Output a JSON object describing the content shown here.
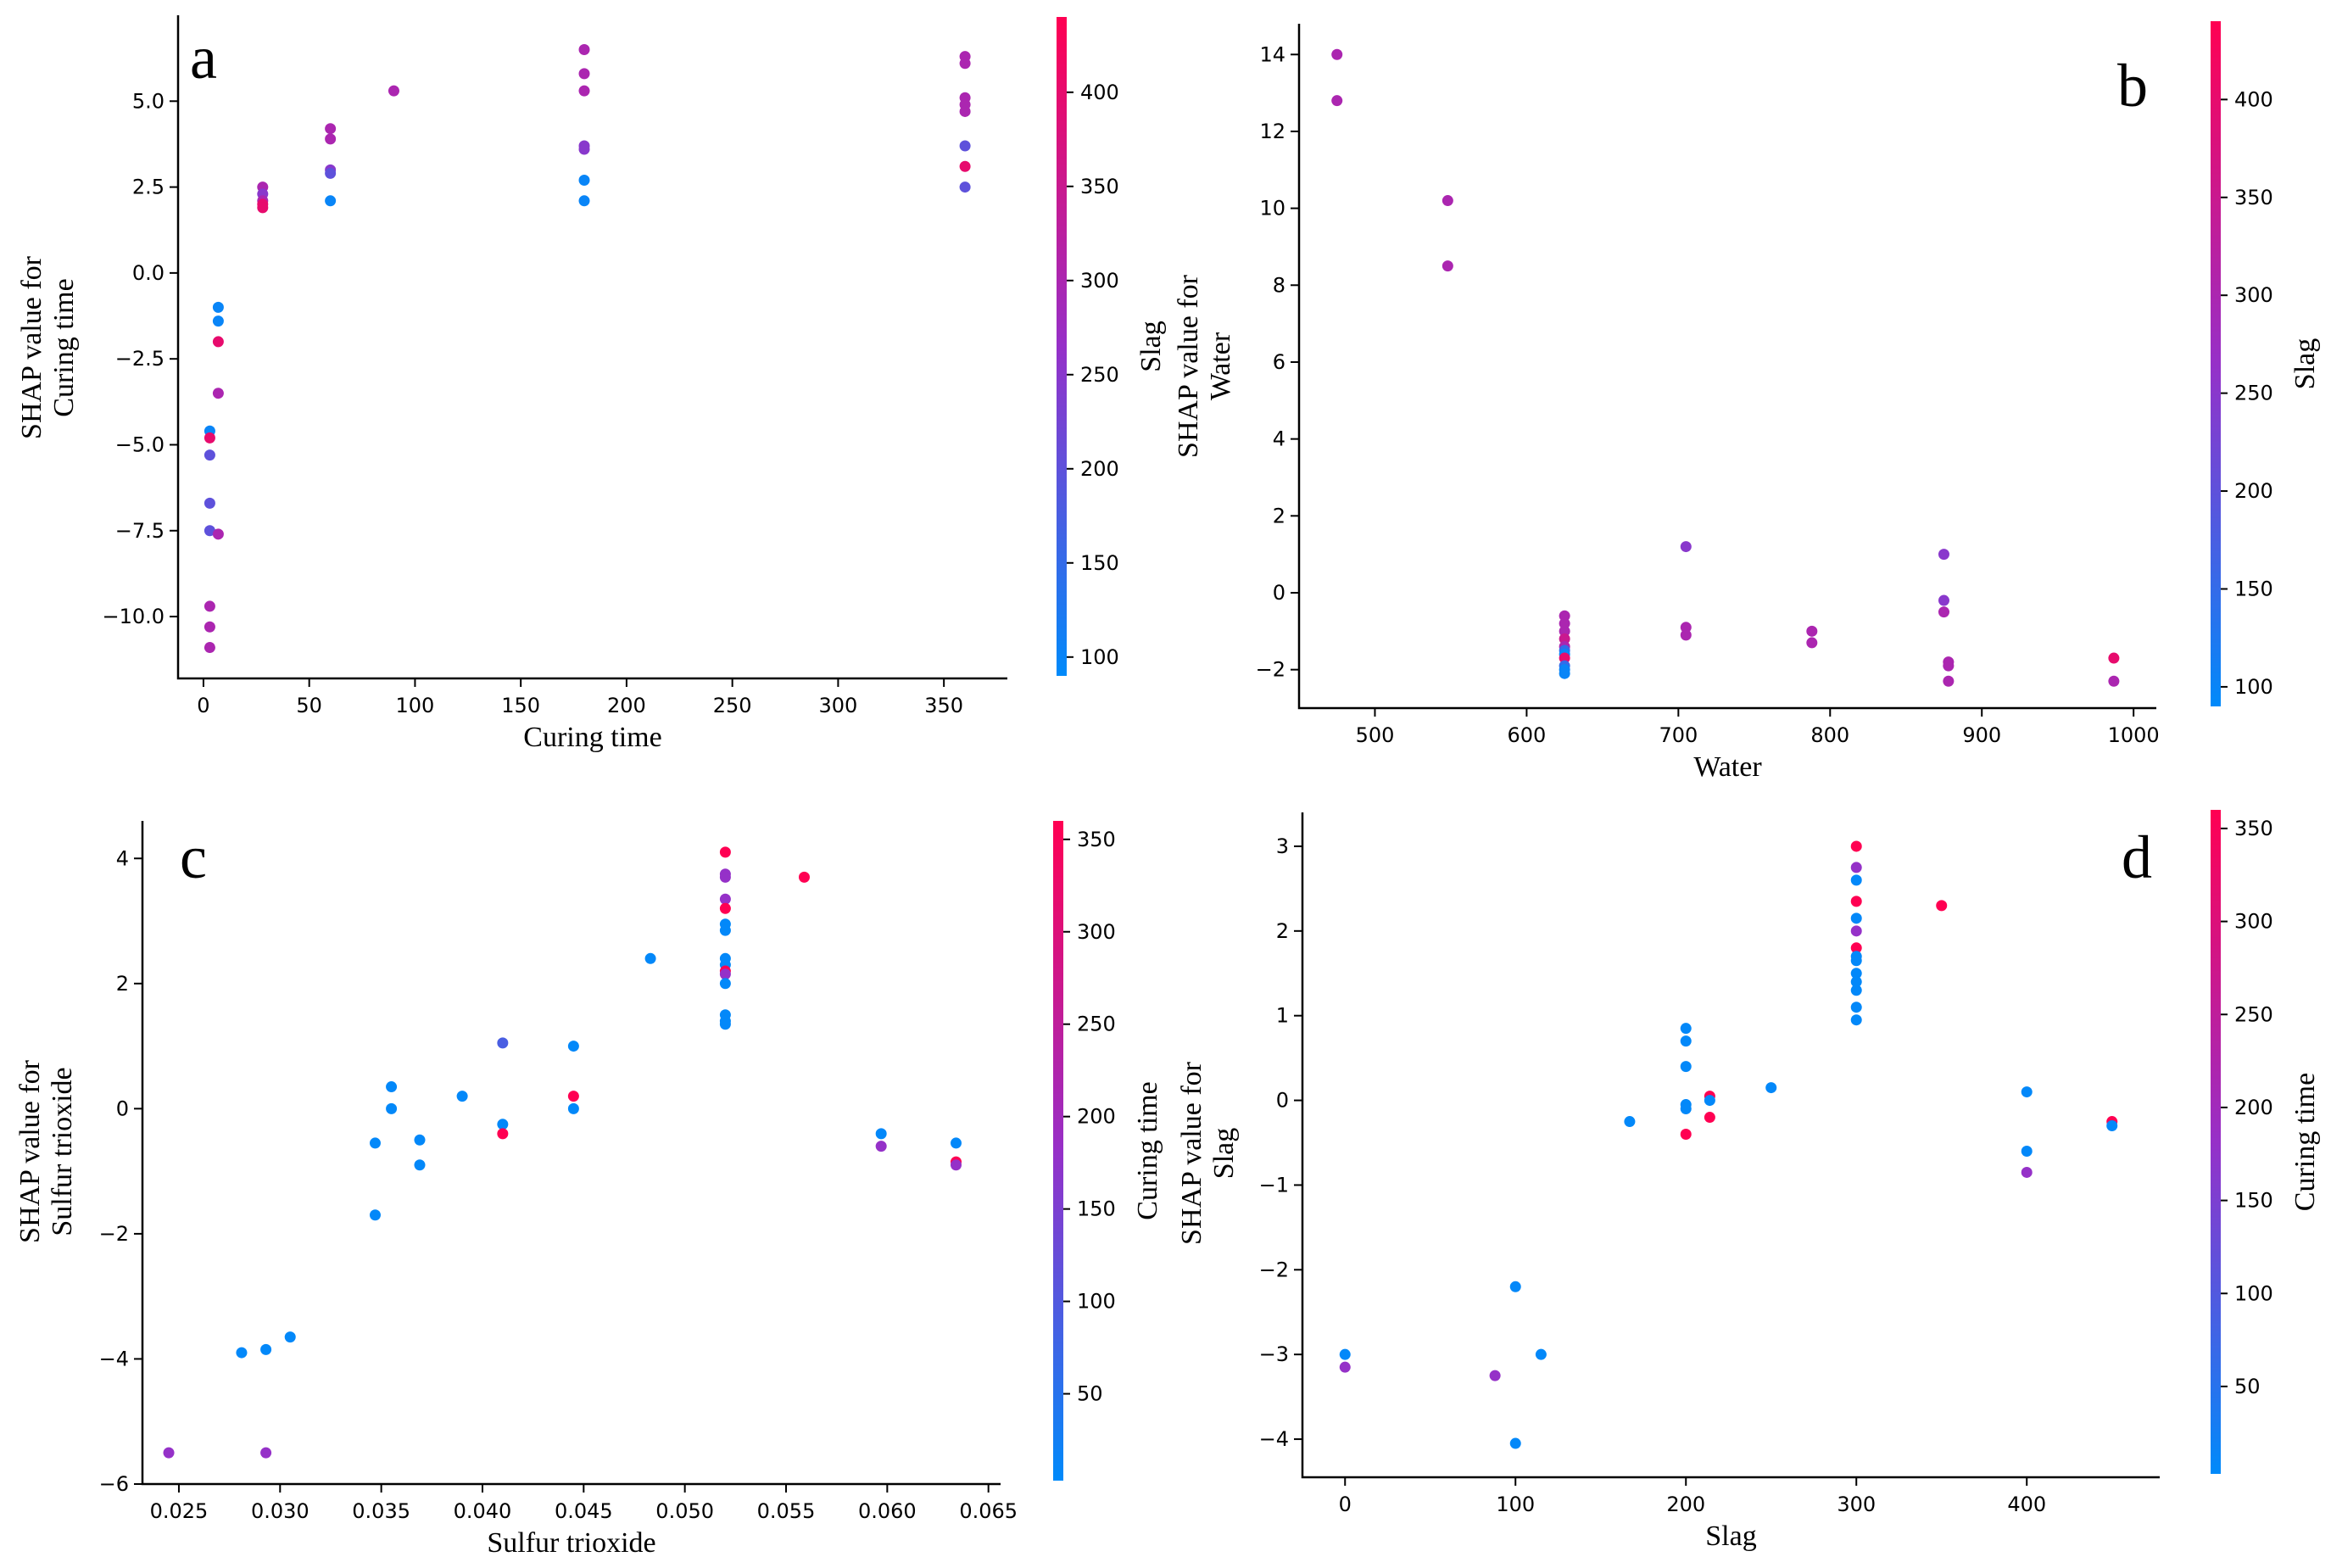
{
  "chart_data": [
    {
      "type": "scatter",
      "panel_label": "a",
      "xlabel": "Curing time",
      "ylabel": [
        "SHAP value for",
        "Curing time"
      ],
      "xlim": [
        -12,
        380
      ],
      "ylim": [
        -11.8,
        7.5
      ],
      "xticks": [
        0,
        50,
        100,
        150,
        200,
        250,
        300,
        350
      ],
      "xtick_labels": [
        "0",
        "50",
        "100",
        "150",
        "200",
        "250",
        "300",
        "350"
      ],
      "yticks": [
        -10.0,
        -7.5,
        -5.0,
        -2.5,
        0.0,
        2.5,
        5.0
      ],
      "ytick_labels": [
        "−10.0",
        "−7.5",
        "−5.0",
        "−2.5",
        "0.0",
        "2.5",
        "5.0"
      ],
      "colorbar": {
        "label": "Slag",
        "range": [
          90,
          440
        ],
        "ticks": [
          100,
          150,
          200,
          250,
          300,
          350,
          400
        ],
        "tick_labels": [
          "100",
          "150",
          "200",
          "250",
          "300",
          "350",
          "400"
        ]
      },
      "points": [
        {
          "x": 7,
          "y": -1.0,
          "c": 100
        },
        {
          "x": 7,
          "y": -1.4,
          "c": 100
        },
        {
          "x": 7,
          "y": -2.0,
          "c": 400
        },
        {
          "x": 7,
          "y": -3.5,
          "c": 300
        },
        {
          "x": 3,
          "y": -4.6,
          "c": 100
        },
        {
          "x": 3,
          "y": -4.8,
          "c": 400
        },
        {
          "x": 3,
          "y": -5.3,
          "c": 200
        },
        {
          "x": 3,
          "y": -6.7,
          "c": 200
        },
        {
          "x": 3,
          "y": -7.5,
          "c": 200
        },
        {
          "x": 7,
          "y": -7.6,
          "c": 300
        },
        {
          "x": 3,
          "y": -9.7,
          "c": 300
        },
        {
          "x": 3,
          "y": -10.3,
          "c": 300
        },
        {
          "x": 3,
          "y": -10.9,
          "c": 300
        },
        {
          "x": 28,
          "y": 2.5,
          "c": 300
        },
        {
          "x": 28,
          "y": 2.3,
          "c": 250
        },
        {
          "x": 28,
          "y": 2.1,
          "c": 300
        },
        {
          "x": 28,
          "y": 2.0,
          "c": 400
        },
        {
          "x": 28,
          "y": 1.9,
          "c": 400
        },
        {
          "x": 60,
          "y": 4.2,
          "c": 300
        },
        {
          "x": 60,
          "y": 3.9,
          "c": 300
        },
        {
          "x": 60,
          "y": 3.0,
          "c": 250
        },
        {
          "x": 60,
          "y": 2.9,
          "c": 200
        },
        {
          "x": 60,
          "y": 2.1,
          "c": 100
        },
        {
          "x": 90,
          "y": 5.3,
          "c": 300
        },
        {
          "x": 180,
          "y": 6.5,
          "c": 300
        },
        {
          "x": 180,
          "y": 5.8,
          "c": 300
        },
        {
          "x": 180,
          "y": 5.3,
          "c": 300
        },
        {
          "x": 180,
          "y": 3.7,
          "c": 250
        },
        {
          "x": 180,
          "y": 3.6,
          "c": 250
        },
        {
          "x": 180,
          "y": 2.7,
          "c": 100
        },
        {
          "x": 180,
          "y": 2.1,
          "c": 100
        },
        {
          "x": 360,
          "y": 6.3,
          "c": 300
        },
        {
          "x": 360,
          "y": 6.1,
          "c": 300
        },
        {
          "x": 360,
          "y": 5.1,
          "c": 300
        },
        {
          "x": 360,
          "y": 4.9,
          "c": 300
        },
        {
          "x": 360,
          "y": 4.7,
          "c": 300
        },
        {
          "x": 360,
          "y": 3.7,
          "c": 200
        },
        {
          "x": 360,
          "y": 3.1,
          "c": 400
        },
        {
          "x": 360,
          "y": 2.5,
          "c": 200
        }
      ]
    },
    {
      "type": "scatter",
      "panel_label": "b",
      "xlabel": "Water",
      "ylabel": [
        "SHAP value for",
        "Water"
      ],
      "xlim": [
        450,
        1015
      ],
      "ylim": [
        -3.0,
        14.8
      ],
      "xticks": [
        500,
        600,
        700,
        800,
        900,
        1000
      ],
      "xtick_labels": [
        "500",
        "600",
        "700",
        "800",
        "900",
        "1000"
      ],
      "yticks": [
        -2,
        0,
        2,
        4,
        6,
        8,
        10,
        12,
        14
      ],
      "ytick_labels": [
        "−2",
        "0",
        "2",
        "4",
        "6",
        "8",
        "10",
        "12",
        "14"
      ],
      "colorbar": {
        "label": "Slag",
        "range": [
          90,
          440
        ],
        "ticks": [
          100,
          150,
          200,
          250,
          300,
          350,
          400
        ],
        "tick_labels": [
          "100",
          "150",
          "200",
          "250",
          "300",
          "350",
          "400"
        ]
      },
      "points": [
        {
          "x": 475,
          "y": 14.0,
          "c": 300
        },
        {
          "x": 475,
          "y": 12.8,
          "c": 300
        },
        {
          "x": 548,
          "y": 10.2,
          "c": 300
        },
        {
          "x": 548,
          "y": 8.5,
          "c": 300
        },
        {
          "x": 625,
          "y": -0.6,
          "c": 300
        },
        {
          "x": 625,
          "y": -0.8,
          "c": 300
        },
        {
          "x": 625,
          "y": -1.0,
          "c": 300
        },
        {
          "x": 625,
          "y": -1.2,
          "c": 350
        },
        {
          "x": 625,
          "y": -1.4,
          "c": 300
        },
        {
          "x": 625,
          "y": -1.5,
          "c": 150
        },
        {
          "x": 625,
          "y": -1.6,
          "c": 100
        },
        {
          "x": 625,
          "y": -1.7,
          "c": 400
        },
        {
          "x": 625,
          "y": -1.9,
          "c": 150
        },
        {
          "x": 625,
          "y": -2.0,
          "c": 100
        },
        {
          "x": 625,
          "y": -2.1,
          "c": 100
        },
        {
          "x": 705,
          "y": 1.2,
          "c": 250
        },
        {
          "x": 705,
          "y": -0.9,
          "c": 300
        },
        {
          "x": 705,
          "y": -1.1,
          "c": 300
        },
        {
          "x": 788,
          "y": -1.0,
          "c": 300
        },
        {
          "x": 788,
          "y": -1.3,
          "c": 300
        },
        {
          "x": 875,
          "y": 1.0,
          "c": 250
        },
        {
          "x": 875,
          "y": -0.2,
          "c": 250
        },
        {
          "x": 875,
          "y": -0.5,
          "c": 300
        },
        {
          "x": 878,
          "y": -1.8,
          "c": 300
        },
        {
          "x": 878,
          "y": -1.9,
          "c": 300
        },
        {
          "x": 878,
          "y": -2.3,
          "c": 300
        },
        {
          "x": 987,
          "y": -1.7,
          "c": 400
        },
        {
          "x": 987,
          "y": -2.3,
          "c": 300
        }
      ]
    },
    {
      "type": "scatter",
      "panel_label": "c",
      "xlabel": "Sulfur trioxide",
      "ylabel": [
        "SHAP value for",
        "Sulfur trioxide"
      ],
      "xlim": [
        0.0232,
        0.0656
      ],
      "ylim": [
        -6.0,
        4.6
      ],
      "xticks": [
        0.025,
        0.03,
        0.035,
        0.04,
        0.045,
        0.05,
        0.055,
        0.06,
        0.065
      ],
      "xtick_labels": [
        "0.025",
        "0.030",
        "0.035",
        "0.040",
        "0.045",
        "0.050",
        "0.055",
        "0.060",
        "0.065"
      ],
      "yticks": [
        -6,
        -4,
        -2,
        0,
        2,
        4
      ],
      "ytick_labels": [
        "−6",
        "−4",
        "−2",
        "0",
        "2",
        "4"
      ],
      "colorbar": {
        "label": "Curing time",
        "range": [
          3,
          360
        ],
        "ticks": [
          50,
          100,
          150,
          200,
          250,
          300,
          350
        ],
        "tick_labels": [
          "50",
          "100",
          "150",
          "200",
          "250",
          "300",
          "350"
        ]
      },
      "points": [
        {
          "x": 0.0245,
          "y": -5.5,
          "c": 180
        },
        {
          "x": 0.0293,
          "y": -5.5,
          "c": 180
        },
        {
          "x": 0.0281,
          "y": -3.9,
          "c": 7
        },
        {
          "x": 0.0293,
          "y": -3.85,
          "c": 7
        },
        {
          "x": 0.0305,
          "y": -3.65,
          "c": 7
        },
        {
          "x": 0.0347,
          "y": -1.7,
          "c": 7
        },
        {
          "x": 0.0347,
          "y": -0.55,
          "c": 7
        },
        {
          "x": 0.0355,
          "y": 0.35,
          "c": 7
        },
        {
          "x": 0.0355,
          "y": 0.0,
          "c": 7
        },
        {
          "x": 0.0369,
          "y": -0.5,
          "c": 7
        },
        {
          "x": 0.0369,
          "y": -0.9,
          "c": 7
        },
        {
          "x": 0.039,
          "y": 0.2,
          "c": 7
        },
        {
          "x": 0.041,
          "y": 1.05,
          "c": 90
        },
        {
          "x": 0.041,
          "y": -0.25,
          "c": 7
        },
        {
          "x": 0.041,
          "y": -0.4,
          "c": 360
        },
        {
          "x": 0.0445,
          "y": 1.0,
          "c": 7
        },
        {
          "x": 0.0445,
          "y": 0.2,
          "c": 360
        },
        {
          "x": 0.0445,
          "y": 0.0,
          "c": 7
        },
        {
          "x": 0.0483,
          "y": 2.4,
          "c": 7
        },
        {
          "x": 0.052,
          "y": 4.1,
          "c": 360
        },
        {
          "x": 0.052,
          "y": 3.75,
          "c": 180
        },
        {
          "x": 0.052,
          "y": 3.7,
          "c": 180
        },
        {
          "x": 0.052,
          "y": 3.35,
          "c": 180
        },
        {
          "x": 0.052,
          "y": 3.2,
          "c": 360
        },
        {
          "x": 0.052,
          "y": 2.95,
          "c": 7
        },
        {
          "x": 0.052,
          "y": 2.85,
          "c": 7
        },
        {
          "x": 0.052,
          "y": 2.4,
          "c": 7
        },
        {
          "x": 0.052,
          "y": 2.3,
          "c": 7
        },
        {
          "x": 0.052,
          "y": 2.2,
          "c": 360
        },
        {
          "x": 0.052,
          "y": 2.15,
          "c": 180
        },
        {
          "x": 0.052,
          "y": 2.0,
          "c": 7
        },
        {
          "x": 0.052,
          "y": 1.5,
          "c": 7
        },
        {
          "x": 0.052,
          "y": 1.4,
          "c": 7
        },
        {
          "x": 0.052,
          "y": 1.35,
          "c": 7
        },
        {
          "x": 0.0559,
          "y": 3.7,
          "c": 360
        },
        {
          "x": 0.0597,
          "y": -0.4,
          "c": 7
        },
        {
          "x": 0.0597,
          "y": -0.6,
          "c": 180
        },
        {
          "x": 0.0634,
          "y": -0.55,
          "c": 7
        },
        {
          "x": 0.0634,
          "y": -0.85,
          "c": 360
        },
        {
          "x": 0.0634,
          "y": -0.9,
          "c": 180
        }
      ]
    },
    {
      "type": "scatter",
      "panel_label": "d",
      "xlabel": "Slag",
      "ylabel": [
        "SHAP value for",
        "Slag"
      ],
      "xlim": [
        -25,
        478
      ],
      "ylim": [
        -4.45,
        3.4
      ],
      "xticks": [
        0,
        100,
        200,
        300,
        400
      ],
      "xtick_labels": [
        "0",
        "100",
        "200",
        "300",
        "400"
      ],
      "yticks": [
        -4,
        -3,
        -2,
        -1,
        0,
        1,
        2,
        3
      ],
      "ytick_labels": [
        "−4",
        "−3",
        "−2",
        "−1",
        "0",
        "1",
        "2",
        "3"
      ],
      "colorbar": {
        "label": "Curing time",
        "range": [
          3,
          360
        ],
        "ticks": [
          50,
          100,
          150,
          200,
          250,
          300,
          350
        ],
        "tick_labels": [
          "50",
          "100",
          "150",
          "200",
          "250",
          "300",
          "350"
        ]
      },
      "points": [
        {
          "x": 0,
          "y": -3.0,
          "c": 7
        },
        {
          "x": 0,
          "y": -3.15,
          "c": 180
        },
        {
          "x": 88,
          "y": -3.25,
          "c": 180
        },
        {
          "x": 100,
          "y": -2.2,
          "c": 7
        },
        {
          "x": 100,
          "y": -4.05,
          "c": 7
        },
        {
          "x": 115,
          "y": -3.0,
          "c": 7
        },
        {
          "x": 167,
          "y": -0.25,
          "c": 7
        },
        {
          "x": 200,
          "y": 0.85,
          "c": 7
        },
        {
          "x": 200,
          "y": 0.7,
          "c": 7
        },
        {
          "x": 200,
          "y": 0.4,
          "c": 7
        },
        {
          "x": 200,
          "y": -0.05,
          "c": 7
        },
        {
          "x": 200,
          "y": -0.1,
          "c": 7
        },
        {
          "x": 200,
          "y": -0.4,
          "c": 360
        },
        {
          "x": 214,
          "y": 0.05,
          "c": 360
        },
        {
          "x": 214,
          "y": 0.0,
          "c": 7
        },
        {
          "x": 214,
          "y": -0.2,
          "c": 360
        },
        {
          "x": 250,
          "y": 0.15,
          "c": 7
        },
        {
          "x": 300,
          "y": 3.0,
          "c": 360
        },
        {
          "x": 300,
          "y": 2.75,
          "c": 180
        },
        {
          "x": 300,
          "y": 2.6,
          "c": 7
        },
        {
          "x": 300,
          "y": 2.35,
          "c": 360
        },
        {
          "x": 300,
          "y": 2.15,
          "c": 7
        },
        {
          "x": 300,
          "y": 2.0,
          "c": 180
        },
        {
          "x": 300,
          "y": 1.8,
          "c": 360
        },
        {
          "x": 300,
          "y": 1.7,
          "c": 7
        },
        {
          "x": 300,
          "y": 1.65,
          "c": 7
        },
        {
          "x": 300,
          "y": 1.5,
          "c": 7
        },
        {
          "x": 300,
          "y": 1.4,
          "c": 7
        },
        {
          "x": 300,
          "y": 1.3,
          "c": 7
        },
        {
          "x": 300,
          "y": 1.1,
          "c": 7
        },
        {
          "x": 300,
          "y": 0.95,
          "c": 7
        },
        {
          "x": 350,
          "y": 2.3,
          "c": 360
        },
        {
          "x": 400,
          "y": 0.1,
          "c": 7
        },
        {
          "x": 400,
          "y": -0.6,
          "c": 7
        },
        {
          "x": 400,
          "y": -0.85,
          "c": 180
        },
        {
          "x": 450,
          "y": -0.25,
          "c": 360
        },
        {
          "x": 450,
          "y": -0.3,
          "c": 7
        }
      ]
    }
  ]
}
